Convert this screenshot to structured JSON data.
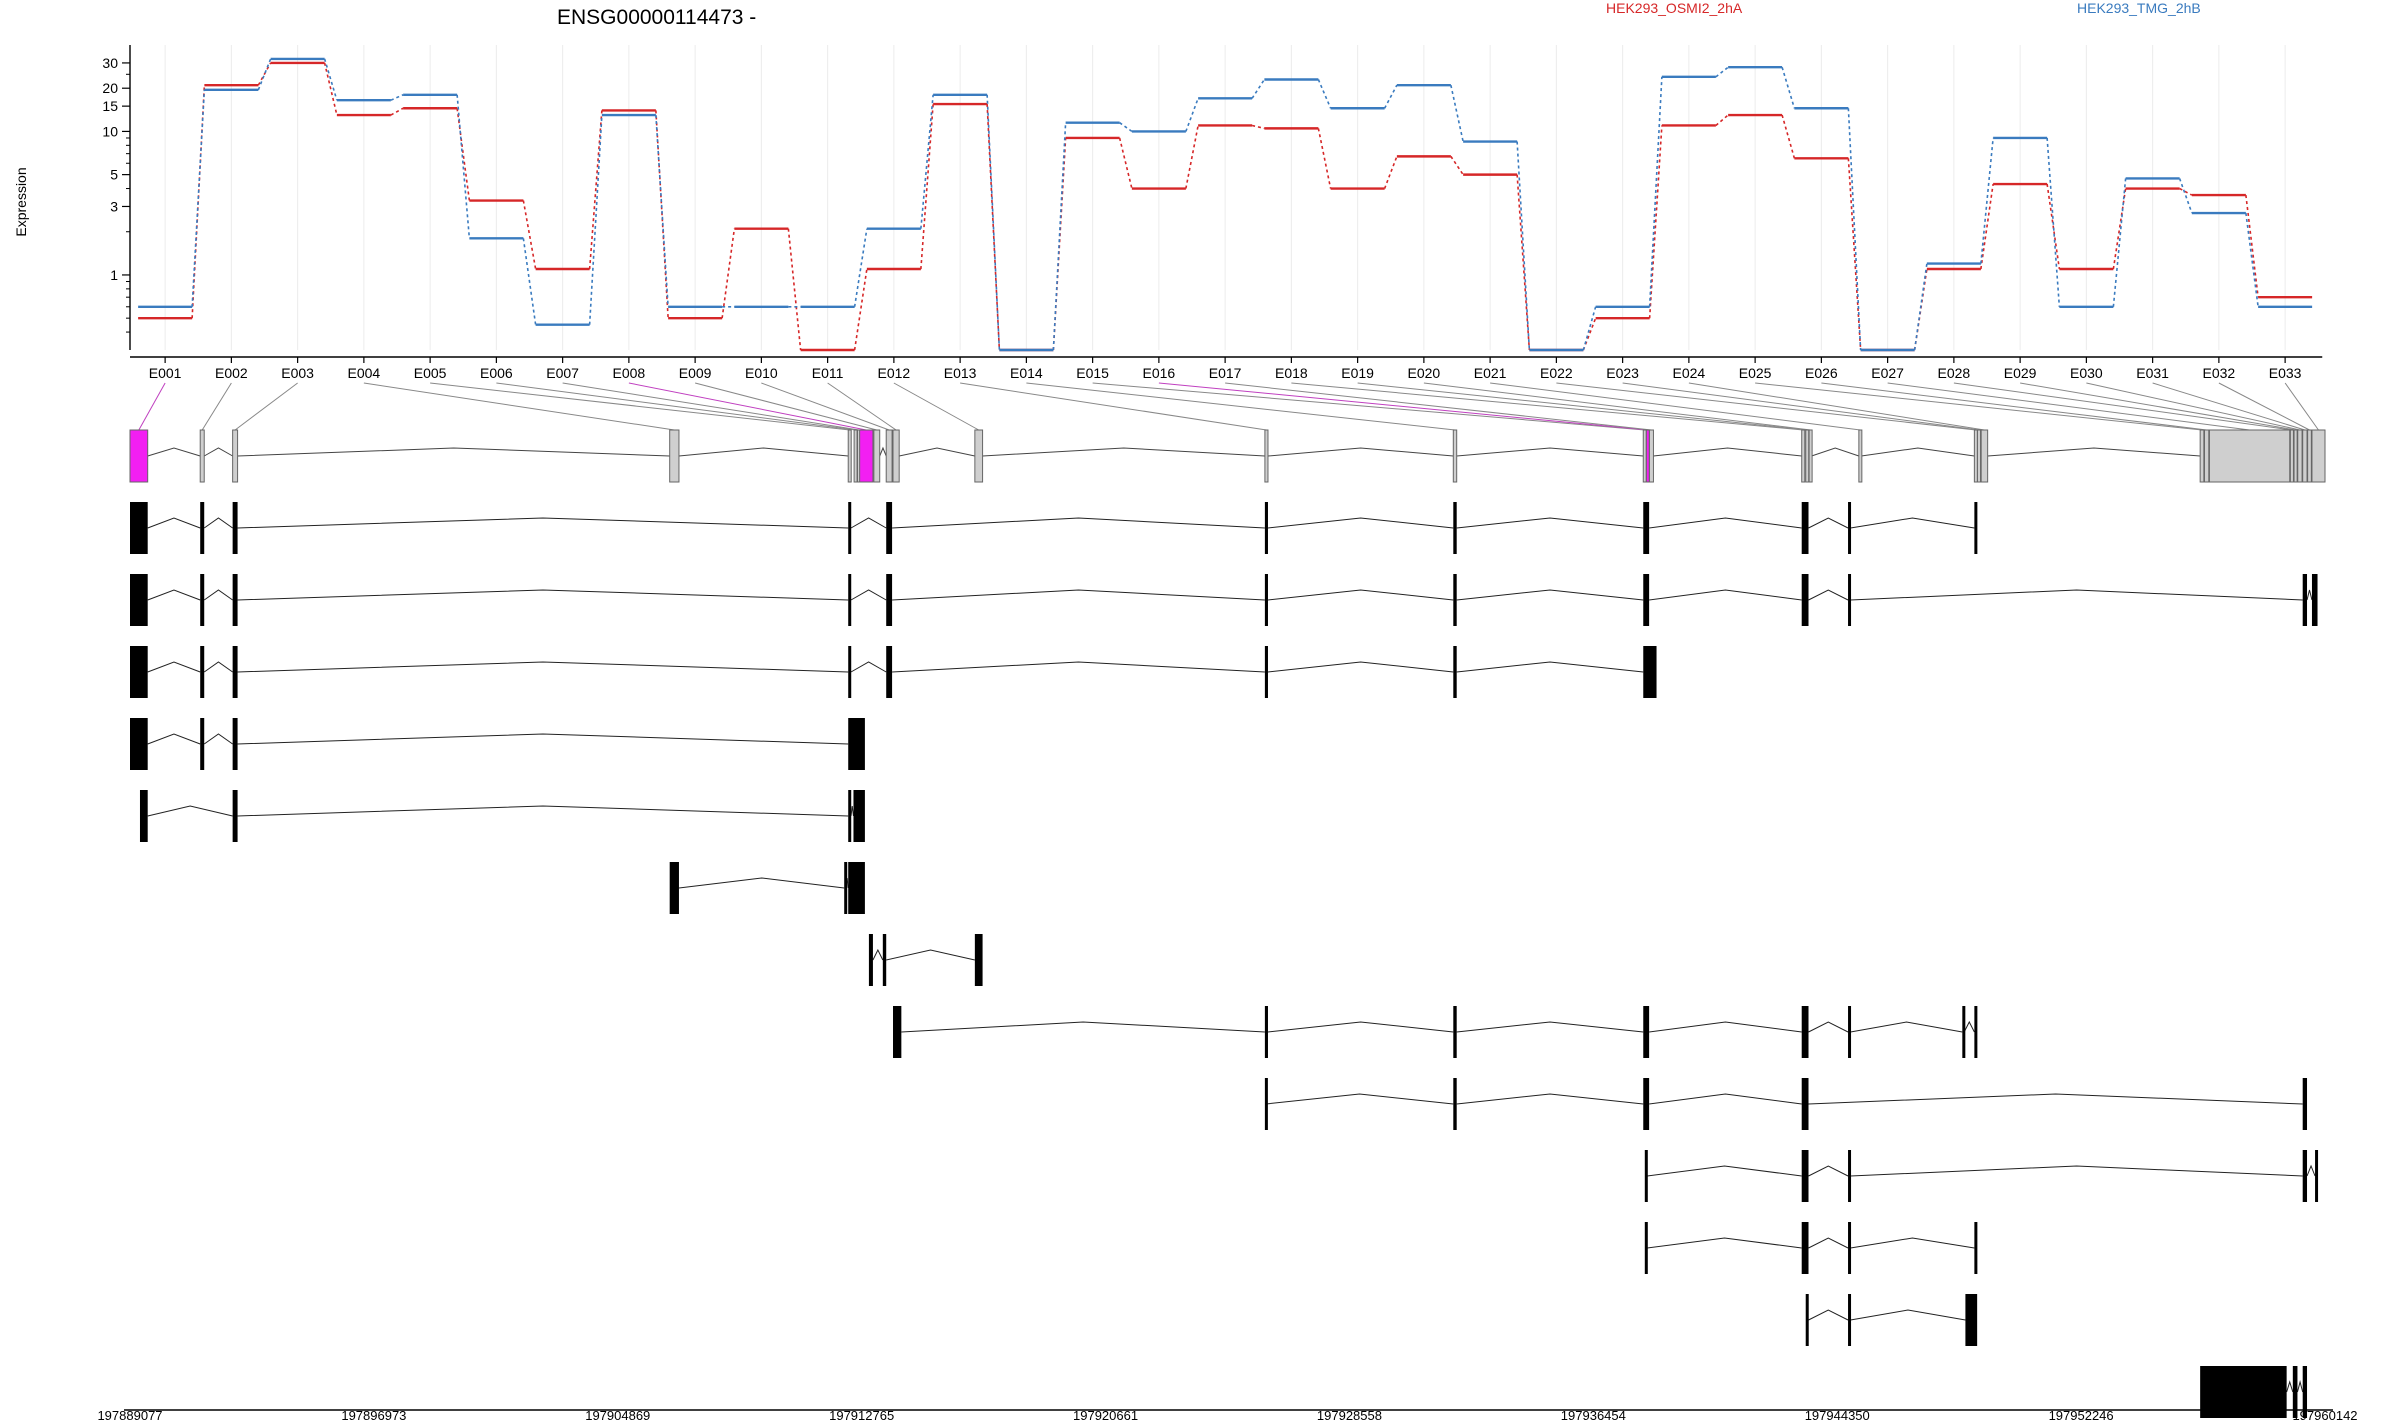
{
  "chart_data": {
    "type": "line",
    "title": "ENSG00000114473 -",
    "ylabel": "Expression",
    "yscale": "log",
    "yticks": [
      1,
      3,
      5,
      10,
      15,
      20,
      30
    ],
    "categories": [
      "E001",
      "E002",
      "E003",
      "E004",
      "E005",
      "E006",
      "E007",
      "E008",
      "E009",
      "E010",
      "E011",
      "E012",
      "E013",
      "E014",
      "E015",
      "E016",
      "E017",
      "E018",
      "E019",
      "E020",
      "E021",
      "E022",
      "E023",
      "E024",
      "E025",
      "E026",
      "E027",
      "E028",
      "E029",
      "E030",
      "E031",
      "E032",
      "E033"
    ],
    "series": [
      {
        "name": "HEK293_OSMI2_2hA",
        "color": "#d62728",
        "values": [
          0.5,
          21,
          30,
          13,
          14.5,
          3.3,
          1.1,
          14,
          0.5,
          2.1,
          0.3,
          1.1,
          15.5,
          0.3,
          9,
          4,
          11,
          10.5,
          4,
          6.7,
          5,
          0.3,
          0.5,
          11,
          13,
          6.5,
          0.3,
          1.1,
          4.3,
          1.1,
          4,
          3.6,
          0.7
        ]
      },
      {
        "name": "HEK293_TMG_2hB",
        "color": "#3a7bbf",
        "values": [
          0.6,
          19.5,
          32,
          16.5,
          18,
          1.8,
          0.45,
          13,
          0.6,
          0.6,
          0.6,
          2.1,
          18,
          0.3,
          11.5,
          10,
          17,
          23,
          14.5,
          21,
          8.5,
          0.3,
          0.6,
          24,
          28,
          14.5,
          0.3,
          1.2,
          9,
          0.6,
          4.7,
          2.7,
          0.6
        ]
      }
    ],
    "legend": "top-right",
    "genomic_axis": {
      "ticks": [
        "197889077",
        "197896973",
        "197904869",
        "197912765",
        "197920661",
        "197928558",
        "197936454",
        "197944350",
        "197952246",
        "197960142"
      ],
      "range": [
        197889077,
        197960142
      ]
    },
    "exon_bins": [
      {
        "id": "E001",
        "start": 197889077,
        "end": 197889650,
        "highlight": true
      },
      {
        "id": "E002",
        "start": 197891350,
        "end": 197891480,
        "highlight": false
      },
      {
        "id": "E003",
        "start": 197892400,
        "end": 197892560,
        "highlight": false
      },
      {
        "id": "E004",
        "start": 197906550,
        "end": 197906850,
        "highlight": false
      },
      {
        "id": "E005",
        "start": 197912330,
        "end": 197912420,
        "highlight": false
      },
      {
        "id": "E006",
        "start": 197912520,
        "end": 197912600,
        "highlight": false
      },
      {
        "id": "E007",
        "start": 197912630,
        "end": 197912690,
        "highlight": false
      },
      {
        "id": "E008",
        "start": 197912700,
        "end": 197913130,
        "highlight": true
      },
      {
        "id": "E009",
        "start": 197913160,
        "end": 197913350,
        "highlight": false
      },
      {
        "id": "E010",
        "start": 197913560,
        "end": 197913750,
        "highlight": false
      },
      {
        "id": "E011",
        "start": 197913780,
        "end": 197913980,
        "highlight": false
      },
      {
        "id": "E012",
        "start": 197916430,
        "end": 197916680,
        "highlight": false
      },
      {
        "id": "E013",
        "start": 197925820,
        "end": 197925920,
        "highlight": false
      },
      {
        "id": "E014",
        "start": 197931920,
        "end": 197932030,
        "highlight": false
      },
      {
        "id": "E015",
        "start": 197938070,
        "end": 197938150,
        "highlight": false
      },
      {
        "id": "E016",
        "start": 197938170,
        "end": 197938260,
        "highlight": true
      },
      {
        "id": "E017",
        "start": 197938270,
        "end": 197938400,
        "highlight": false
      },
      {
        "id": "E018",
        "start": 197943200,
        "end": 197943300,
        "highlight": false
      },
      {
        "id": "E019",
        "start": 197943330,
        "end": 197943420,
        "highlight": false
      },
      {
        "id": "E020",
        "start": 197943440,
        "end": 197943520,
        "highlight": false
      },
      {
        "id": "E021",
        "start": 197945050,
        "end": 197945130,
        "highlight": false
      },
      {
        "id": "E022",
        "start": 197948790,
        "end": 197948880,
        "highlight": false
      },
      {
        "id": "E023",
        "start": 197948890,
        "end": 197948990,
        "highlight": false
      },
      {
        "id": "E024",
        "start": 197949010,
        "end": 197949220,
        "highlight": false
      },
      {
        "id": "E025",
        "start": 197956100,
        "end": 197956220,
        "highlight": false
      },
      {
        "id": "E026",
        "start": 197956240,
        "end": 197956380,
        "highlight": false
      },
      {
        "id": "E027",
        "start": 197956400,
        "end": 197959000,
        "highlight": false
      },
      {
        "id": "E028",
        "start": 197959020,
        "end": 197959120,
        "highlight": false
      },
      {
        "id": "E029",
        "start": 197959140,
        "end": 197959240,
        "highlight": false
      },
      {
        "id": "E030",
        "start": 197959260,
        "end": 197959400,
        "highlight": false
      },
      {
        "id": "E031",
        "start": 197959420,
        "end": 197959560,
        "highlight": false
      },
      {
        "id": "E032",
        "start": 197959580,
        "end": 197959700,
        "highlight": false
      },
      {
        "id": "E033",
        "start": 197959720,
        "end": 197960142,
        "highlight": false
      }
    ],
    "transcripts": [
      [
        [
          197889077,
          197889650
        ],
        [
          197891350,
          197891480
        ],
        [
          197892400,
          197892560
        ],
        [
          197912330,
          197912420
        ],
        [
          197913560,
          197913750
        ],
        [
          197925820,
          197925920
        ],
        [
          197931920,
          197932030
        ],
        [
          197938070,
          197938260
        ],
        [
          197943200,
          197943420
        ],
        [
          197944700,
          197944780
        ],
        [
          197948790,
          197948880
        ]
      ],
      [
        [
          197889077,
          197889650
        ],
        [
          197891350,
          197891480
        ],
        [
          197892400,
          197892560
        ],
        [
          197912330,
          197912420
        ],
        [
          197913560,
          197913750
        ],
        [
          197925820,
          197925920
        ],
        [
          197931920,
          197932030
        ],
        [
          197938070,
          197938260
        ],
        [
          197943200,
          197943420
        ],
        [
          197944700,
          197944780
        ],
        [
          197959420,
          197959560
        ],
        [
          197959720,
          197959900
        ]
      ],
      [
        [
          197889077,
          197889650
        ],
        [
          197891350,
          197891480
        ],
        [
          197892400,
          197892560
        ],
        [
          197912330,
          197912420
        ],
        [
          197913560,
          197913750
        ],
        [
          197925820,
          197925920
        ],
        [
          197931920,
          197932030
        ],
        [
          197938070,
          197938500
        ]
      ],
      [
        [
          197889077,
          197889650
        ],
        [
          197891350,
          197891480
        ],
        [
          197892400,
          197892560
        ],
        [
          197912330,
          197912870
        ]
      ],
      [
        [
          197889400,
          197889650
        ],
        [
          197892400,
          197892560
        ],
        [
          197912330,
          197912420
        ],
        [
          197912500,
          197912870
        ]
      ],
      [
        [
          197906550,
          197906850
        ],
        [
          197912200,
          197912260
        ],
        [
          197912330,
          197912870
        ]
      ],
      [
        [
          197913000,
          197913130
        ],
        [
          197913450,
          197913560
        ],
        [
          197916430,
          197916680
        ]
      ],
      [
        [
          197913780,
          197914050
        ],
        [
          197925820,
          197925920
        ],
        [
          197931920,
          197932030
        ],
        [
          197938070,
          197938260
        ],
        [
          197943200,
          197943420
        ],
        [
          197944700,
          197944780
        ],
        [
          197948400,
          197948460
        ],
        [
          197948790,
          197948880
        ]
      ],
      [
        [
          197925820,
          197925850
        ],
        [
          197931920,
          197932030
        ],
        [
          197938070,
          197938260
        ],
        [
          197943200,
          197943420
        ],
        [
          197959420,
          197959560
        ]
      ],
      [
        [
          197938120,
          197938200
        ],
        [
          197943200,
          197943420
        ],
        [
          197944700,
          197944780
        ],
        [
          197959420,
          197959560
        ],
        [
          197959820,
          197959900
        ]
      ],
      [
        [
          197938120,
          197938200
        ],
        [
          197943200,
          197943420
        ],
        [
          197944700,
          197944780
        ],
        [
          197948790,
          197948880
        ]
      ],
      [
        [
          197943330,
          197943420
        ],
        [
          197944700,
          197944780
        ],
        [
          197948500,
          197948880
        ]
      ],
      [
        [
          197956100,
          197958900
        ],
        [
          197959100,
          197959250
        ],
        [
          197959420,
          197959560
        ]
      ]
    ]
  }
}
